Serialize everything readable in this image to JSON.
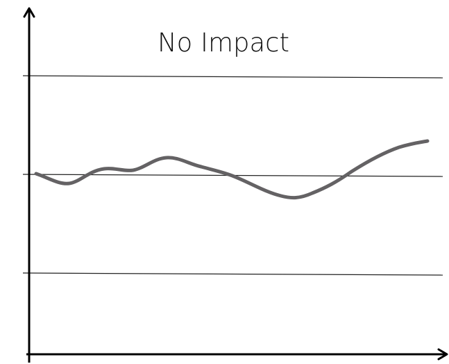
{
  "title": "No Impact"
}
